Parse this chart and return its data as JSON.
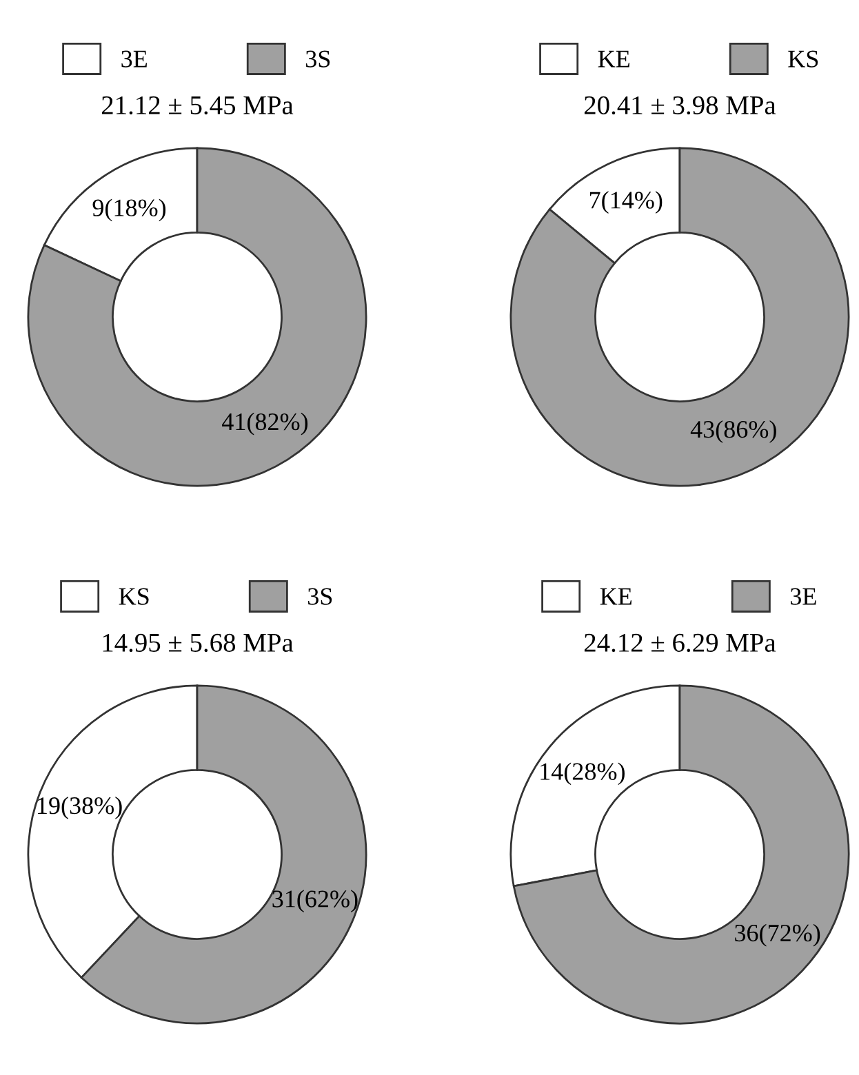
{
  "chart_data": [
    {
      "type": "donut",
      "title": "21.12 ± 5.45 MPa",
      "categories": [
        "3E",
        "3S"
      ],
      "values": [
        9,
        41
      ],
      "colors": [
        "#ffffff",
        "#a0a0a0"
      ],
      "value_labels": [
        "9(18%)",
        "41(82%)"
      ],
      "legend": "top"
    },
    {
      "type": "donut",
      "title": "20.41 ± 3.98 MPa",
      "categories": [
        "KE",
        "KS"
      ],
      "values": [
        7,
        43
      ],
      "colors": [
        "#ffffff",
        "#a0a0a0"
      ],
      "value_labels": [
        "7(14%)",
        "43(86%)"
      ],
      "legend": "top"
    },
    {
      "type": "donut",
      "title": "14.95 ± 5.68 MPa",
      "categories": [
        "KS",
        "3S"
      ],
      "values": [
        19,
        31
      ],
      "colors": [
        "#ffffff",
        "#a0a0a0"
      ],
      "value_labels": [
        "19(38%)",
        "31(62%)"
      ],
      "legend": "top"
    },
    {
      "type": "donut",
      "title": "24.12 ± 6.29 MPa",
      "categories": [
        "KE",
        "3E"
      ],
      "values": [
        14,
        36
      ],
      "colors": [
        "#ffffff",
        "#a0a0a0"
      ],
      "value_labels": [
        "14(28%)",
        "36(72%)"
      ],
      "legend": "top"
    }
  ]
}
